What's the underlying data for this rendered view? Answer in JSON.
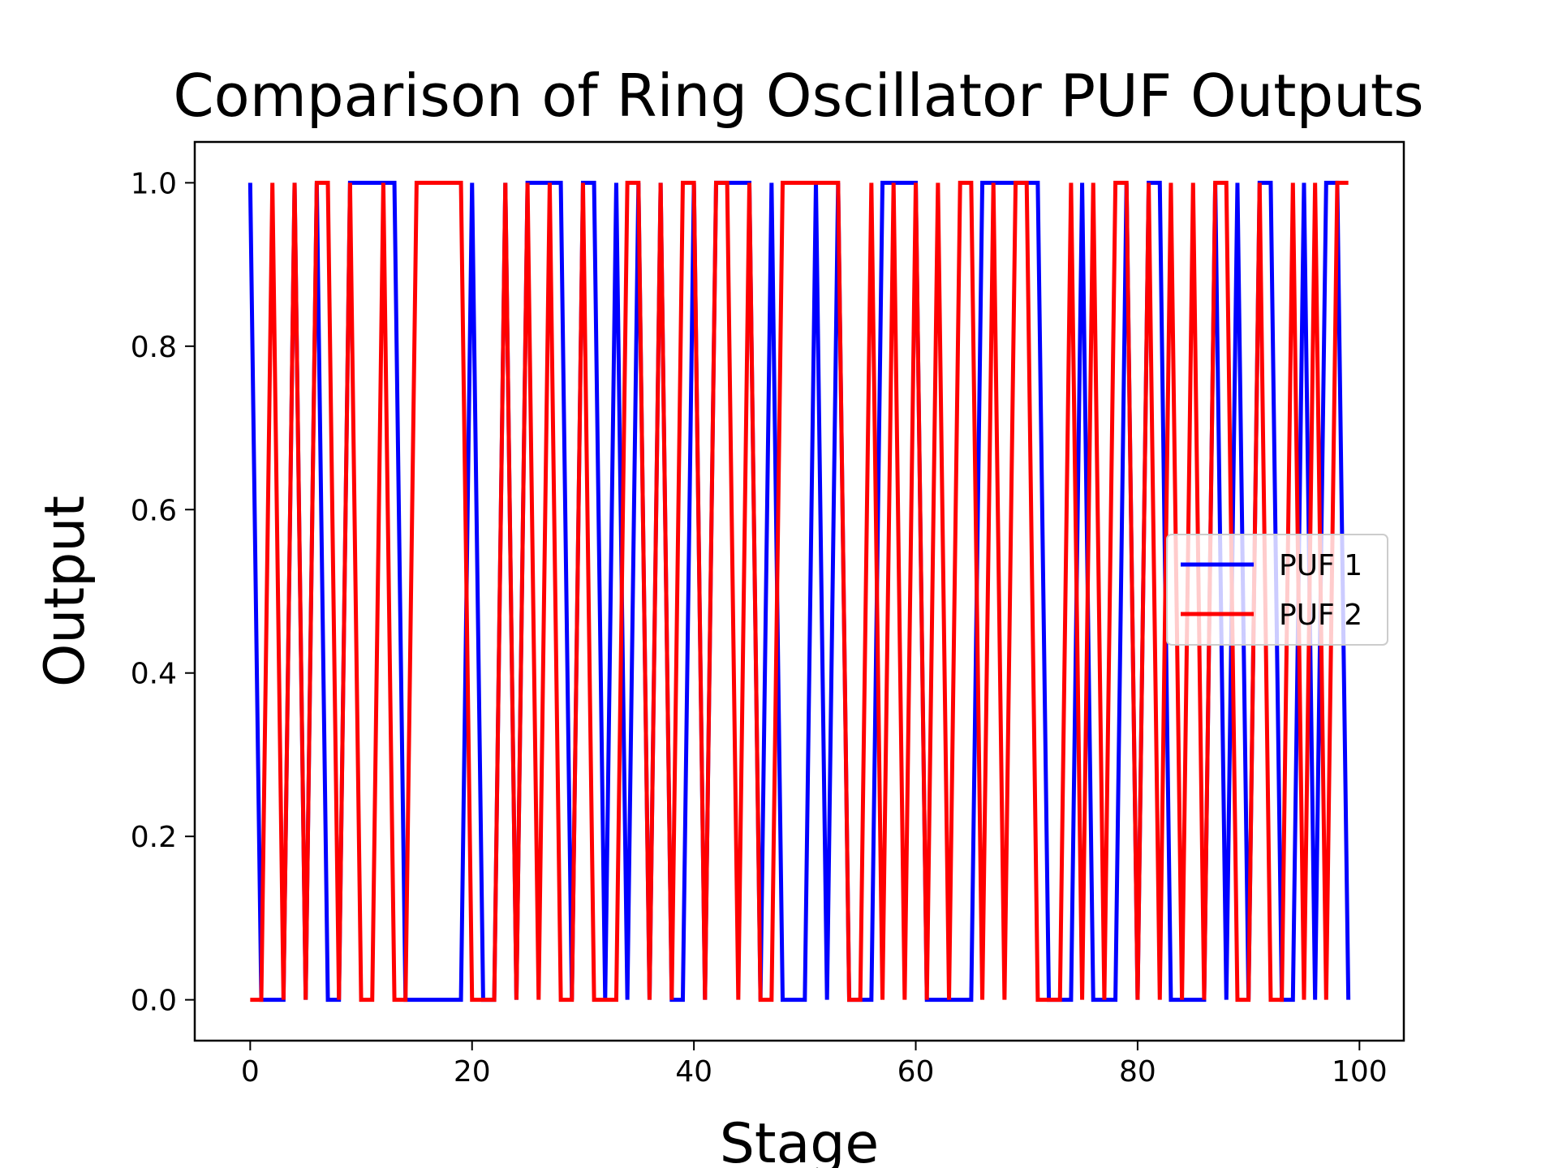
{
  "chart_data": {
    "type": "line",
    "title": "Comparison of Ring Oscillator PUF Outputs",
    "xlabel": "Stage",
    "ylabel": "Output",
    "xlim": [
      -5,
      104
    ],
    "ylim": [
      -0.05,
      1.05
    ],
    "xticks": [
      0,
      20,
      40,
      60,
      80,
      100
    ],
    "xtick_labels": [
      "0",
      "20",
      "40",
      "60",
      "80",
      "100"
    ],
    "yticks": [
      0.0,
      0.2,
      0.4,
      0.6,
      0.8,
      1.0
    ],
    "ytick_labels": [
      "0.0",
      "0.2",
      "0.4",
      "0.6",
      "0.8",
      "1.0"
    ],
    "grid": false,
    "legend_position": "center-right",
    "x": [
      0,
      1,
      2,
      3,
      4,
      5,
      6,
      7,
      8,
      9,
      10,
      11,
      12,
      13,
      14,
      15,
      16,
      17,
      18,
      19,
      20,
      21,
      22,
      23,
      24,
      25,
      26,
      27,
      28,
      29,
      30,
      31,
      32,
      33,
      34,
      35,
      36,
      37,
      38,
      39,
      40,
      41,
      42,
      43,
      44,
      45,
      46,
      47,
      48,
      49,
      50,
      51,
      52,
      53,
      54,
      55,
      56,
      57,
      58,
      59,
      60,
      61,
      62,
      63,
      64,
      65,
      66,
      67,
      68,
      69,
      70,
      71,
      72,
      73,
      74,
      75,
      76,
      77,
      78,
      79,
      80,
      81,
      82,
      83,
      84,
      85,
      86,
      87,
      88,
      89,
      90,
      91,
      92,
      93,
      94,
      95,
      96,
      97,
      98,
      99
    ],
    "series": [
      {
        "name": "PUF 1",
        "color": "#0000ff",
        "values": [
          1,
          0,
          0,
          0,
          1,
          0,
          1,
          0,
          0,
          1,
          1,
          1,
          1,
          1,
          0,
          0,
          0,
          0,
          0,
          0,
          1,
          0,
          0,
          1,
          0,
          1,
          1,
          1,
          1,
          0,
          1,
          1,
          0,
          1,
          0,
          1,
          0,
          1,
          0,
          0,
          1,
          0,
          1,
          1,
          1,
          1,
          0,
          1,
          0,
          0,
          0,
          1,
          0,
          1,
          0,
          0,
          0,
          1,
          1,
          1,
          1,
          0,
          0,
          0,
          0,
          0,
          1,
          1,
          1,
          1,
          1,
          1,
          0,
          0,
          0,
          1,
          0,
          0,
          0,
          1,
          0,
          1,
          1,
          0,
          0,
          0,
          0,
          1,
          0,
          1,
          0,
          1,
          1,
          0,
          0,
          1,
          0,
          1,
          1,
          0
        ]
      },
      {
        "name": "PUF 2",
        "color": "#ff0000",
        "values": [
          0,
          0,
          1,
          0,
          1,
          0,
          1,
          1,
          0,
          1,
          0,
          0,
          1,
          0,
          0,
          1,
          1,
          1,
          1,
          1,
          0,
          0,
          0,
          1,
          0,
          1,
          0,
          1,
          0,
          0,
          1,
          0,
          0,
          0,
          1,
          1,
          0,
          1,
          0,
          1,
          1,
          0,
          1,
          1,
          0,
          1,
          0,
          0,
          1,
          1,
          1,
          1,
          1,
          1,
          0,
          0,
          1,
          0,
          1,
          0,
          1,
          0,
          1,
          0,
          1,
          1,
          0,
          1,
          0,
          1,
          1,
          0,
          0,
          0,
          1,
          0,
          1,
          0,
          1,
          1,
          0,
          1,
          0,
          1,
          0,
          1,
          0,
          1,
          1,
          0,
          0,
          1,
          0,
          0,
          1,
          0,
          1,
          0,
          1,
          1
        ]
      }
    ]
  }
}
